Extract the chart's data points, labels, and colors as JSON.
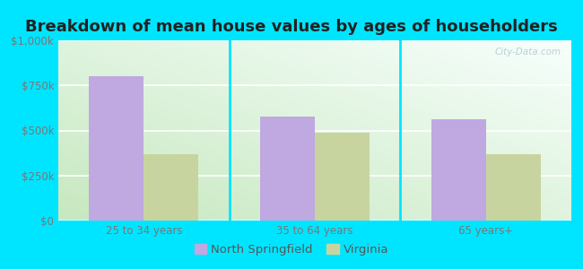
{
  "title": "Breakdown of mean house values by ages of householders",
  "categories": [
    "25 to 34 years",
    "35 to 64 years",
    "65 years+"
  ],
  "north_springfield": [
    800000,
    575000,
    560000
  ],
  "virginia": [
    370000,
    490000,
    370000
  ],
  "bar_color_ns": "#c0a8e0",
  "bar_color_va": "#c8d4a0",
  "ylim": [
    0,
    1000000
  ],
  "yticks": [
    0,
    250000,
    500000,
    750000,
    1000000
  ],
  "ytick_labels": [
    "$0",
    "$250k",
    "$500k",
    "$750k",
    "$1,000k"
  ],
  "legend_ns": "North Springfield",
  "legend_va": "Virginia",
  "background_outer": "#00e5ff",
  "bar_width": 0.32,
  "title_fontsize": 13,
  "tick_fontsize": 8.5,
  "legend_fontsize": 9.5,
  "watermark": "City-Data.com",
  "watermark_color": "#b8d0d8"
}
